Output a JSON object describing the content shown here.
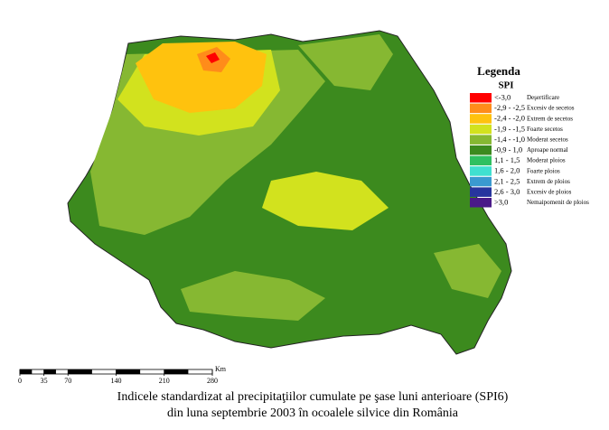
{
  "legend": {
    "title": "Legenda",
    "subtitle": "SPI",
    "items": [
      {
        "range": "<-3,0",
        "label": "Deşertificare",
        "color": "#ff0000"
      },
      {
        "range": "-2,9 - -2,5",
        "label": "Excesiv de secetos",
        "color": "#ff8c1a"
      },
      {
        "range": "-2,4 - -2,0",
        "label": "Extrem de secetos",
        "color": "#ffc20e"
      },
      {
        "range": "-1,9 - -1,5",
        "label": "Foarte secetos",
        "color": "#d2e21e"
      },
      {
        "range": "-1,4 - -1,0",
        "label": "Moderat secetos",
        "color": "#86b832"
      },
      {
        "range": "-0,9 - 1,0",
        "label": "Aproape normal",
        "color": "#3c8a1e"
      },
      {
        "range": "1,1 - 1,5",
        "label": "Moderat ploios",
        "color": "#2fc060"
      },
      {
        "range": "1,6 - 2,0",
        "label": "Foarte ploios",
        "color": "#40e0d0"
      },
      {
        "range": "2,1 - 2,5",
        "label": "Extrem de ploios",
        "color": "#3a9ad0"
      },
      {
        "range": "2,6 - 3,0",
        "label": "Excesiv de ploios",
        "color": "#27359e"
      },
      {
        "range": ">3,0",
        "label": "Nemaipomenit de ploios",
        "color": "#4a1a88"
      }
    ]
  },
  "scale_bar": {
    "ticks": [
      0,
      35,
      70,
      140,
      210,
      280
    ],
    "unit": "Km"
  },
  "caption": {
    "line1": "Indicele standardizat al precipitaţiilor cumulate pe şase luni anterioare (SPI6)",
    "line2": "din luna septembrie 2003 în ocoalele silvice din România"
  }
}
